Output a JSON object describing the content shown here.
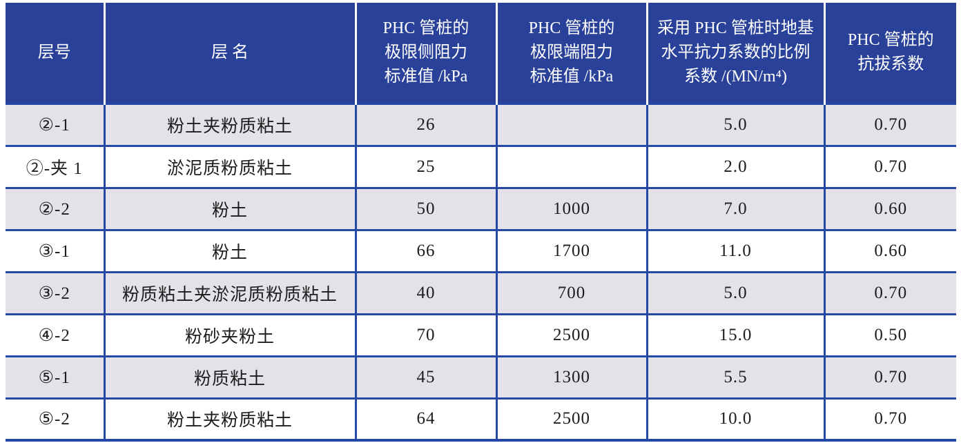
{
  "table": {
    "columns": [
      {
        "id": "layer_no",
        "lines": [
          "层号"
        ]
      },
      {
        "id": "layer_name",
        "lines": [
          "层 名"
        ]
      },
      {
        "id": "side_resistance",
        "lines": [
          "PHC 管桩的",
          "极限侧阻力",
          "标准值 /kPa"
        ]
      },
      {
        "id": "end_resistance",
        "lines": [
          "PHC 管桩的",
          "极限端阻力",
          "标准值 /kPa"
        ]
      },
      {
        "id": "horizontal_coeff",
        "lines": [
          "采用 PHC 管桩时地基",
          "水平抗力系数的比例",
          "系数 /(MN/m⁴)"
        ]
      },
      {
        "id": "uplift_coeff",
        "lines": [
          "PHC 管桩的",
          "抗拔系数"
        ]
      }
    ],
    "rows": [
      {
        "layer_no": "②-1",
        "layer_name": "粉土夹粉质粘土",
        "side_resistance": "26",
        "end_resistance": "",
        "horizontal_coeff": "5.0",
        "uplift_coeff": "0.70"
      },
      {
        "layer_no": "②-夹 1",
        "layer_name": "淤泥质粉质粘土",
        "side_resistance": "25",
        "end_resistance": "",
        "horizontal_coeff": "2.0",
        "uplift_coeff": "0.70"
      },
      {
        "layer_no": "②-2",
        "layer_name": "粉土",
        "side_resistance": "50",
        "end_resistance": "1000",
        "horizontal_coeff": "7.0",
        "uplift_coeff": "0.60"
      },
      {
        "layer_no": "③-1",
        "layer_name": "粉土",
        "side_resistance": "66",
        "end_resistance": "1700",
        "horizontal_coeff": "11.0",
        "uplift_coeff": "0.60"
      },
      {
        "layer_no": "③-2",
        "layer_name": "粉质粘土夹淤泥质粉质粘土",
        "side_resistance": "40",
        "end_resistance": "700",
        "horizontal_coeff": "5.0",
        "uplift_coeff": "0.70"
      },
      {
        "layer_no": "④-2",
        "layer_name": "粉砂夹粉土",
        "side_resistance": "70",
        "end_resistance": "2500",
        "horizontal_coeff": "15.0",
        "uplift_coeff": "0.50"
      },
      {
        "layer_no": "⑤-1",
        "layer_name": "粉质粘土",
        "side_resistance": "45",
        "end_resistance": "1300",
        "horizontal_coeff": "5.5",
        "uplift_coeff": "0.70"
      },
      {
        "layer_no": "⑤-2",
        "layer_name": "粉土夹粉质粘土",
        "side_resistance": "64",
        "end_resistance": "2500",
        "horizontal_coeff": "10.0",
        "uplift_coeff": "0.70"
      }
    ]
  },
  "colors": {
    "header_bg": "#2a4199",
    "header_text": "#ffffff",
    "border": "#2547a6",
    "row_alt_bg": "#e3e2e8",
    "row_bg": "#ffffff",
    "cell_text": "#1c1c1c",
    "page_bg": "#ffffff"
  }
}
